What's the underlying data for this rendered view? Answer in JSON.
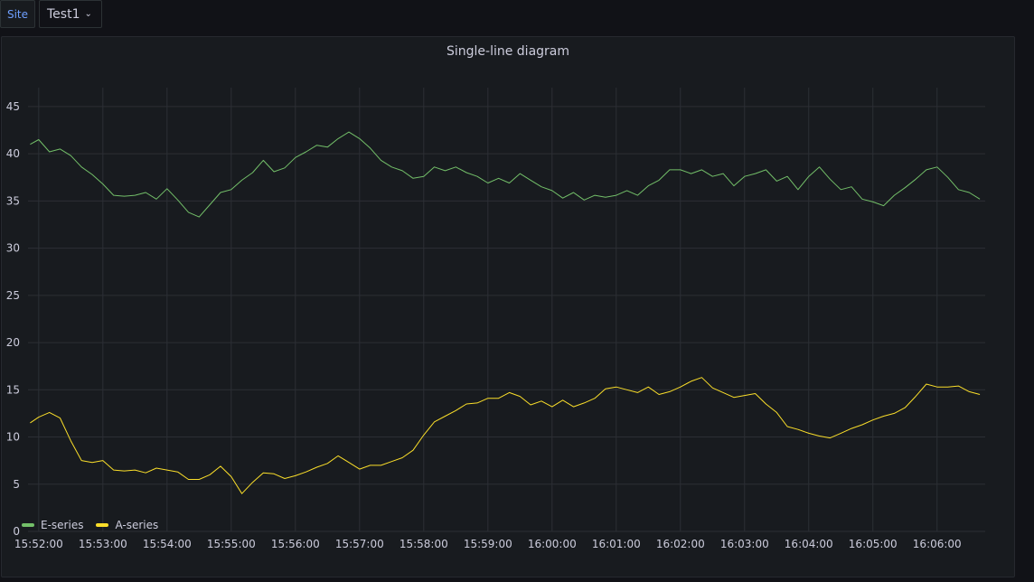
{
  "variables": {
    "label": "Site",
    "selected": "Test1"
  },
  "panel": {
    "title": "Single-line diagram"
  },
  "colors": {
    "E-series": "#73bf69",
    "A-series": "#fade2a",
    "grid": "#2c2f35",
    "axis_text": "#ccccdc"
  },
  "legend": [
    {
      "name": "E-series",
      "color": "#73bf69"
    },
    {
      "name": "A-series",
      "color": "#fade2a"
    }
  ],
  "chart_data": {
    "type": "line",
    "title": "Single-line diagram",
    "xlabel": "",
    "ylabel": "",
    "ylim": [
      0,
      47
    ],
    "xlim": [
      "15:51:50",
      "16:06:45"
    ],
    "y_ticks": [
      0,
      5,
      10,
      15,
      20,
      25,
      30,
      35,
      40,
      45
    ],
    "x_ticks": [
      "15:52:00",
      "15:53:00",
      "15:54:00",
      "15:55:00",
      "15:56:00",
      "15:57:00",
      "15:58:00",
      "15:59:00",
      "16:00:00",
      "16:01:00",
      "16:02:00",
      "16:03:00",
      "16:04:00",
      "16:05:00",
      "16:06:00"
    ],
    "grid": true,
    "legend_position": "bottom-left",
    "x": [
      "15:51:52",
      "15:52:00",
      "15:52:10",
      "15:52:20",
      "15:52:30",
      "15:52:40",
      "15:52:50",
      "15:53:00",
      "15:53:10",
      "15:53:20",
      "15:53:30",
      "15:53:40",
      "15:53:50",
      "15:54:00",
      "15:54:10",
      "15:54:20",
      "15:54:30",
      "15:54:40",
      "15:54:50",
      "15:55:00",
      "15:55:10",
      "15:55:20",
      "15:55:30",
      "15:55:40",
      "15:55:50",
      "15:56:00",
      "15:56:10",
      "15:56:20",
      "15:56:30",
      "15:56:40",
      "15:56:50",
      "15:57:00",
      "15:57:10",
      "15:57:20",
      "15:57:30",
      "15:57:40",
      "15:57:50",
      "15:58:00",
      "15:58:10",
      "15:58:20",
      "15:58:30",
      "15:58:40",
      "15:58:50",
      "15:59:00",
      "15:59:10",
      "15:59:20",
      "15:59:30",
      "15:59:40",
      "15:59:50",
      "16:00:00",
      "16:00:10",
      "16:00:20",
      "16:00:30",
      "16:00:40",
      "16:00:50",
      "16:01:00",
      "16:01:10",
      "16:01:20",
      "16:01:30",
      "16:01:40",
      "16:01:50",
      "16:02:00",
      "16:02:10",
      "16:02:20",
      "16:02:30",
      "16:02:40",
      "16:02:50",
      "16:03:00",
      "16:03:10",
      "16:03:20",
      "16:03:30",
      "16:03:40",
      "16:03:50",
      "16:04:00",
      "16:04:10",
      "16:04:20",
      "16:04:30",
      "16:04:40",
      "16:04:50",
      "16:05:00",
      "16:05:10",
      "16:05:20",
      "16:05:30",
      "16:05:40",
      "16:05:50",
      "16:06:00",
      "16:06:10",
      "16:06:20",
      "16:06:30",
      "16:06:40"
    ],
    "series": [
      {
        "name": "E-series",
        "values": [
          41.0,
          41.5,
          40.2,
          40.5,
          39.8,
          38.6,
          37.8,
          36.8,
          35.6,
          35.5,
          35.6,
          35.9,
          35.2,
          36.3,
          35.1,
          33.8,
          33.3,
          34.6,
          35.9,
          36.2,
          37.2,
          38.0,
          39.3,
          38.1,
          38.5,
          39.6,
          40.2,
          40.9,
          40.7,
          41.6,
          42.3,
          41.6,
          40.6,
          39.3,
          38.6,
          38.2,
          37.4,
          37.6,
          38.6,
          38.2,
          38.6,
          38.0,
          37.6,
          36.9,
          37.4,
          36.9,
          37.9,
          37.2,
          36.5,
          36.1,
          35.3,
          35.9,
          35.1,
          35.6,
          35.4,
          35.6,
          36.1,
          35.6,
          36.6,
          37.2,
          38.3,
          38.3,
          37.9,
          38.3,
          37.6,
          37.9,
          36.6,
          37.6,
          37.9,
          38.3,
          37.1,
          37.6,
          36.2,
          37.6,
          38.6,
          37.3,
          36.2,
          36.5,
          35.2,
          34.9,
          34.5,
          35.6,
          36.4,
          37.3,
          38.3,
          38.6,
          37.5,
          36.2,
          35.9,
          35.2
        ]
      },
      {
        "name": "A-series",
        "values": [
          11.5,
          12.1,
          12.6,
          12.0,
          9.6,
          7.5,
          7.3,
          7.5,
          6.5,
          6.4,
          6.5,
          6.2,
          6.7,
          6.5,
          6.3,
          5.5,
          5.5,
          6.0,
          6.9,
          5.8,
          4.0,
          5.2,
          6.2,
          6.1,
          5.6,
          5.9,
          6.3,
          6.8,
          7.2,
          8.0,
          7.3,
          6.6,
          7.0,
          7.0,
          7.4,
          7.8,
          8.6,
          10.2,
          11.6,
          12.2,
          12.8,
          13.5,
          13.6,
          14.1,
          14.1,
          14.7,
          14.3,
          13.4,
          13.8,
          13.2,
          13.9,
          13.2,
          13.6,
          14.1,
          15.1,
          15.3,
          15.0,
          14.7,
          15.3,
          14.5,
          14.8,
          15.3,
          15.9,
          16.3,
          15.2,
          14.7,
          14.2,
          14.4,
          14.6,
          13.5,
          12.6,
          11.1,
          10.8,
          10.4,
          10.1,
          9.9,
          10.4,
          10.9,
          11.3,
          11.8,
          12.2,
          12.5,
          13.1,
          14.3,
          15.6,
          15.3,
          15.3,
          15.4,
          14.8,
          14.5
        ]
      }
    ]
  }
}
